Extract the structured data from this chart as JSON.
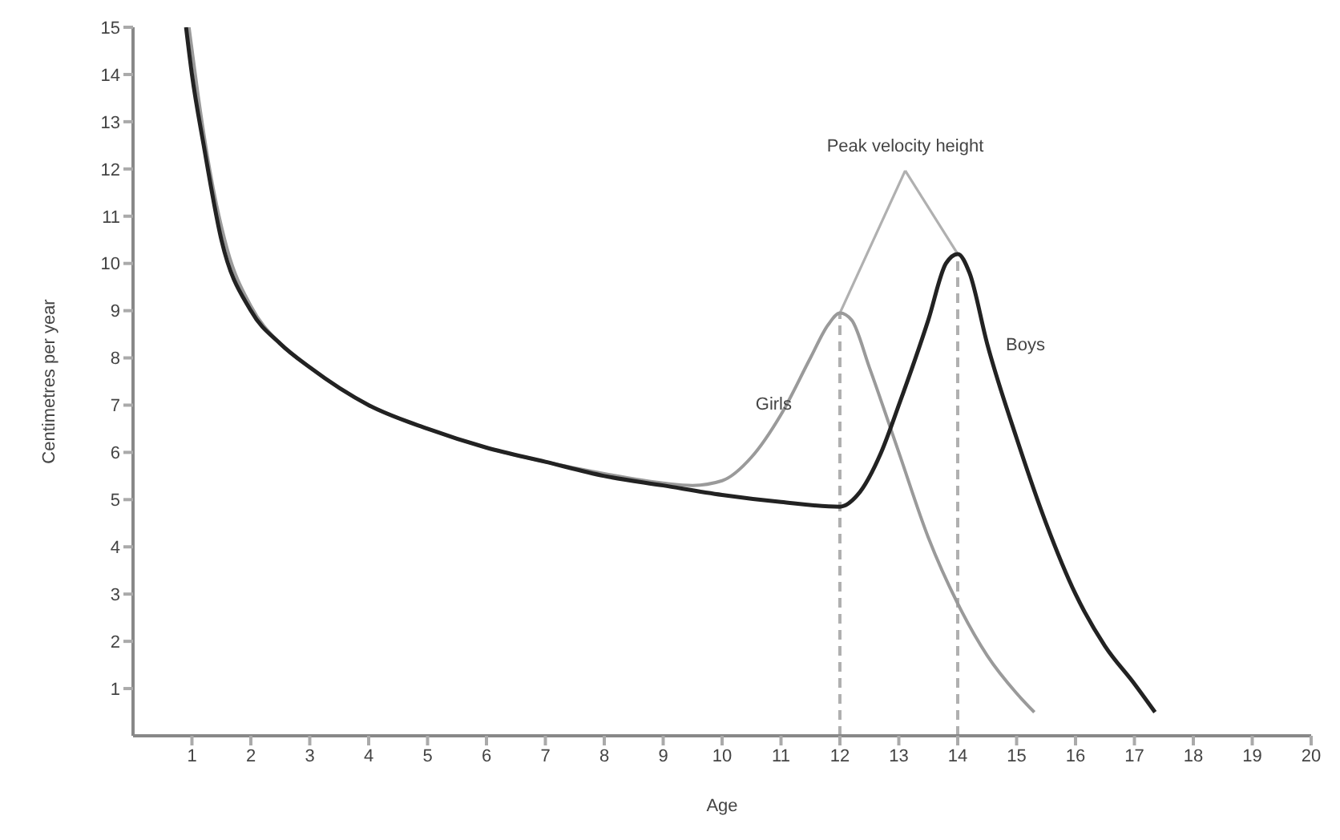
{
  "chart_data": {
    "type": "line",
    "xlabel": "Age",
    "ylabel": "Centimetres per year",
    "xlim": [
      0,
      20
    ],
    "ylim": [
      0,
      15
    ],
    "xticks": [
      1,
      2,
      3,
      4,
      5,
      6,
      7,
      8,
      9,
      10,
      11,
      12,
      13,
      14,
      15,
      16,
      17,
      18,
      19,
      20
    ],
    "yticks": [
      1,
      2,
      3,
      4,
      5,
      6,
      7,
      8,
      9,
      10,
      11,
      12,
      13,
      14,
      15
    ],
    "grid": false,
    "marker": "none",
    "line_style": "solid",
    "annotations": [
      "Peak velocity height"
    ],
    "ref_lines": [
      {
        "axis": "x",
        "value": 12,
        "color": "#b0b0b0",
        "line_style": "dashed"
      },
      {
        "axis": "x",
        "value": 14,
        "color": "#b0b0b0",
        "line_style": "dashed"
      }
    ],
    "series": [
      {
        "name": "Girls",
        "color": "#9a9a9a",
        "x": [
          0.95,
          1.1,
          1.3,
          1.6,
          2,
          2.5,
          3,
          4,
          5,
          6,
          7,
          8,
          9,
          9.5,
          10,
          10.5,
          11,
          11.5,
          11.8,
          12,
          12.2,
          12.5,
          13,
          13.5,
          14,
          14.5,
          15,
          15.3
        ],
        "values": [
          15,
          13.6,
          12,
          10.3,
          9.1,
          8.3,
          7.8,
          7,
          6.5,
          6.1,
          5.8,
          5.55,
          5.35,
          5.3,
          5.4,
          5.9,
          6.8,
          8,
          8.7,
          8.95,
          8.8,
          7.8,
          6,
          4.2,
          2.8,
          1.7,
          0.9,
          0.5
        ]
      },
      {
        "name": "Boys",
        "color": "#222222",
        "x": [
          0.9,
          1,
          1.2,
          1.5,
          2,
          2.5,
          3,
          4,
          5,
          6,
          7,
          8,
          9,
          10,
          11,
          12,
          12.3,
          12.7,
          13,
          13.5,
          13.8,
          14,
          14.2,
          14.5,
          15,
          15.5,
          16,
          16.5,
          17,
          17.35
        ],
        "values": [
          15,
          14,
          12.5,
          10.5,
          9,
          8.3,
          7.8,
          7,
          6.5,
          6.1,
          5.8,
          5.5,
          5.3,
          5.1,
          4.95,
          4.85,
          5.1,
          6,
          7,
          8.8,
          10,
          10.2,
          9.8,
          8.3,
          6.3,
          4.5,
          3,
          1.9,
          1.1,
          0.5
        ]
      }
    ]
  }
}
